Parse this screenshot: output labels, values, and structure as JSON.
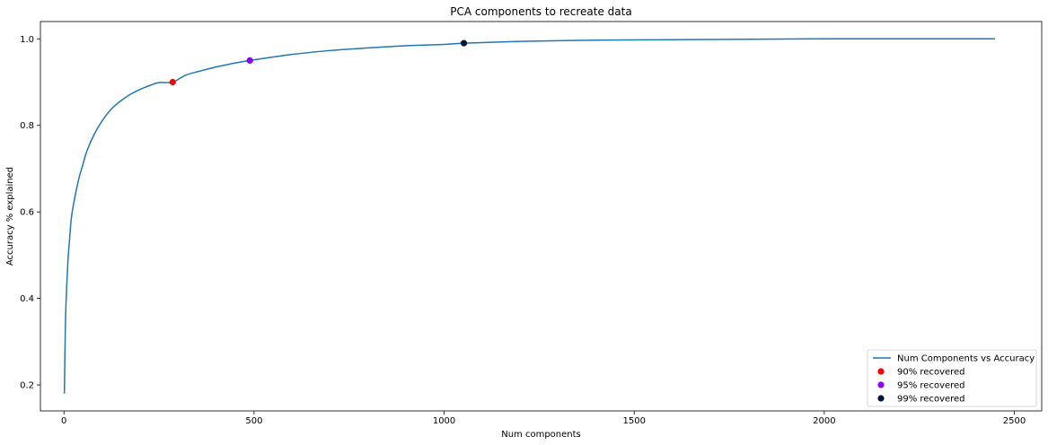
{
  "chart_data": {
    "type": "line",
    "title": "PCA components to recreate data",
    "xlabel": "Num components",
    "ylabel": "Accuracy % explained",
    "xlim": [
      -62,
      2572
    ],
    "ylim": [
      0.14,
      1.04
    ],
    "xticks": [
      0,
      500,
      1000,
      1500,
      2000,
      2500
    ],
    "xtick_labels": [
      "0",
      "500",
      "1000",
      "1500",
      "2000",
      "2500"
    ],
    "yticks": [
      0.2,
      0.4,
      0.6,
      0.8,
      1.0
    ],
    "ytick_labels": [
      "0.2",
      "0.4",
      "0.6",
      "0.8",
      "1.0"
    ],
    "grid": false,
    "legend_position": "bottom-right",
    "series": [
      {
        "name": "Num Components vs Accuracy",
        "kind": "line",
        "color": "#1f77b4",
        "x": [
          1,
          3,
          5,
          10,
          15,
          20,
          30,
          40,
          50,
          60,
          80,
          100,
          125,
          150,
          175,
          200,
          225,
          250,
          286,
          320,
          360,
          400,
          450,
          489,
          550,
          600,
          700,
          800,
          900,
          1000,
          1052,
          1200,
          1400,
          1600,
          1800,
          2000,
          2200,
          2449
        ],
        "y": [
          0.18,
          0.3,
          0.38,
          0.48,
          0.54,
          0.59,
          0.64,
          0.68,
          0.71,
          0.74,
          0.78,
          0.81,
          0.838,
          0.857,
          0.872,
          0.883,
          0.892,
          0.899,
          0.9,
          0.916,
          0.926,
          0.935,
          0.944,
          0.95,
          0.958,
          0.964,
          0.973,
          0.979,
          0.984,
          0.987,
          0.99,
          0.994,
          0.997,
          0.998,
          0.999,
          1.0,
          1.0,
          1.0
        ]
      },
      {
        "name": "90% recovered",
        "kind": "scatter",
        "color": "#ff0000",
        "x": [
          286
        ],
        "y": [
          0.9
        ]
      },
      {
        "name": "95% recovered",
        "kind": "scatter",
        "color": "#8b00ff",
        "x": [
          489
        ],
        "y": [
          0.95
        ]
      },
      {
        "name": "99% recovered",
        "kind": "scatter",
        "color": "#0a1240",
        "x": [
          1052
        ],
        "y": [
          0.99
        ]
      }
    ]
  }
}
